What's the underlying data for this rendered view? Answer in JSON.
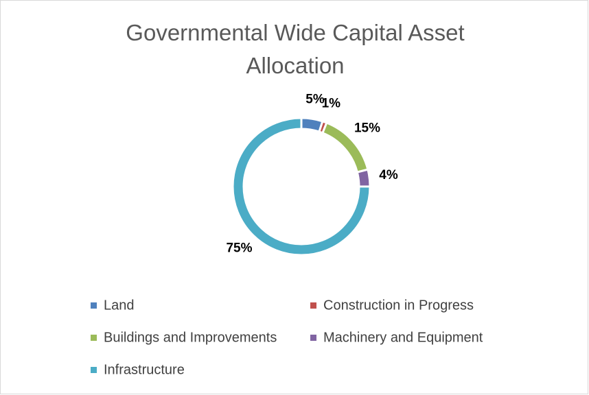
{
  "chart_data": {
    "type": "donut",
    "title": "Governmental Wide Capital Asset Allocation",
    "categories": [
      "Land",
      "Construction in Progress",
      "Buildings and Improvements",
      "Machinery and Equipment",
      "Infrastructure"
    ],
    "values": [
      5,
      1,
      15,
      4,
      75
    ],
    "value_labels": [
      "5%",
      "1%",
      "15%",
      "4%",
      "75%"
    ],
    "colors": [
      "#4f81bd",
      "#c0504d",
      "#9bbb59",
      "#8064a2",
      "#4bacc6"
    ],
    "legend": "bottom"
  }
}
